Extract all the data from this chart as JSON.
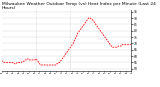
{
  "title": "Milwaukee Weather Outdoor Temp (vs) Heat Index per Minute (Last 24 Hours)",
  "title_fontsize": 3.2,
  "bg_color": "#ffffff",
  "line_color": "#ff0000",
  "grid_color": "#cccccc",
  "ylim": [
    48,
    96
  ],
  "yticks": [
    50,
    55,
    60,
    65,
    70,
    75,
    80,
    85,
    90,
    95
  ],
  "ytick_labels": [
    "50",
    "55",
    "60",
    "65",
    "70",
    "75",
    "80",
    "85",
    "90",
    "95"
  ],
  "vlines": [
    0.265,
    0.53
  ],
  "x_values": [
    0,
    1,
    2,
    3,
    4,
    5,
    6,
    7,
    8,
    9,
    10,
    11,
    12,
    13,
    14,
    15,
    16,
    17,
    18,
    19,
    20,
    21,
    22,
    23,
    24,
    25,
    26,
    27,
    28,
    29,
    30,
    31,
    32,
    33,
    34,
    35,
    36,
    37,
    38,
    39,
    40,
    41,
    42,
    43,
    44,
    45,
    46,
    47,
    48,
    49,
    50,
    51,
    52,
    53,
    54,
    55,
    56,
    57,
    58,
    59,
    60,
    61,
    62,
    63,
    64,
    65,
    66,
    67,
    68,
    69,
    70,
    71,
    72,
    73,
    74,
    75,
    76,
    77,
    78,
    79,
    80,
    81,
    82,
    83,
    84,
    85,
    86,
    87,
    88,
    89,
    90,
    91,
    92,
    93,
    94,
    95,
    96,
    97,
    98,
    99,
    100,
    101,
    102,
    103,
    104,
    105,
    106,
    107,
    108,
    109,
    110,
    111,
    112,
    113,
    114,
    115,
    116,
    117,
    118,
    119,
    120,
    121,
    122,
    123,
    124,
    125,
    126,
    127,
    128,
    129,
    130,
    131,
    132,
    133,
    134,
    135,
    136,
    137,
    138,
    139,
    140,
    141,
    142,
    143
  ],
  "y_values": [
    56,
    56,
    56,
    55,
    55,
    55,
    55,
    55,
    55,
    55,
    55,
    55,
    55,
    55,
    54,
    54,
    54,
    55,
    55,
    55,
    55,
    55,
    55,
    56,
    56,
    56,
    57,
    57,
    57,
    58,
    57,
    57,
    57,
    57,
    57,
    57,
    57,
    57,
    58,
    57,
    56,
    55,
    54,
    53,
    53,
    53,
    53,
    53,
    53,
    53,
    53,
    53,
    53,
    53,
    53,
    53,
    53,
    53,
    53,
    53,
    53,
    54,
    54,
    55,
    55,
    56,
    57,
    58,
    59,
    60,
    61,
    62,
    63,
    64,
    65,
    66,
    67,
    68,
    69,
    70,
    72,
    73,
    75,
    76,
    78,
    79,
    80,
    81,
    82,
    83,
    84,
    85,
    86,
    87,
    88,
    89,
    90,
    90,
    90,
    89,
    89,
    88,
    87,
    86,
    85,
    84,
    83,
    82,
    81,
    80,
    79,
    78,
    77,
    76,
    75,
    74,
    73,
    72,
    71,
    70,
    69,
    68,
    67,
    67,
    67,
    67,
    67,
    67,
    67,
    68,
    68,
    68,
    68,
    69,
    69,
    69,
    69,
    69,
    69,
    69,
    69,
    69,
    69,
    69
  ],
  "n_xticks": 24,
  "line_width": 0.6,
  "dashes": [
    2.0,
    1.2
  ]
}
